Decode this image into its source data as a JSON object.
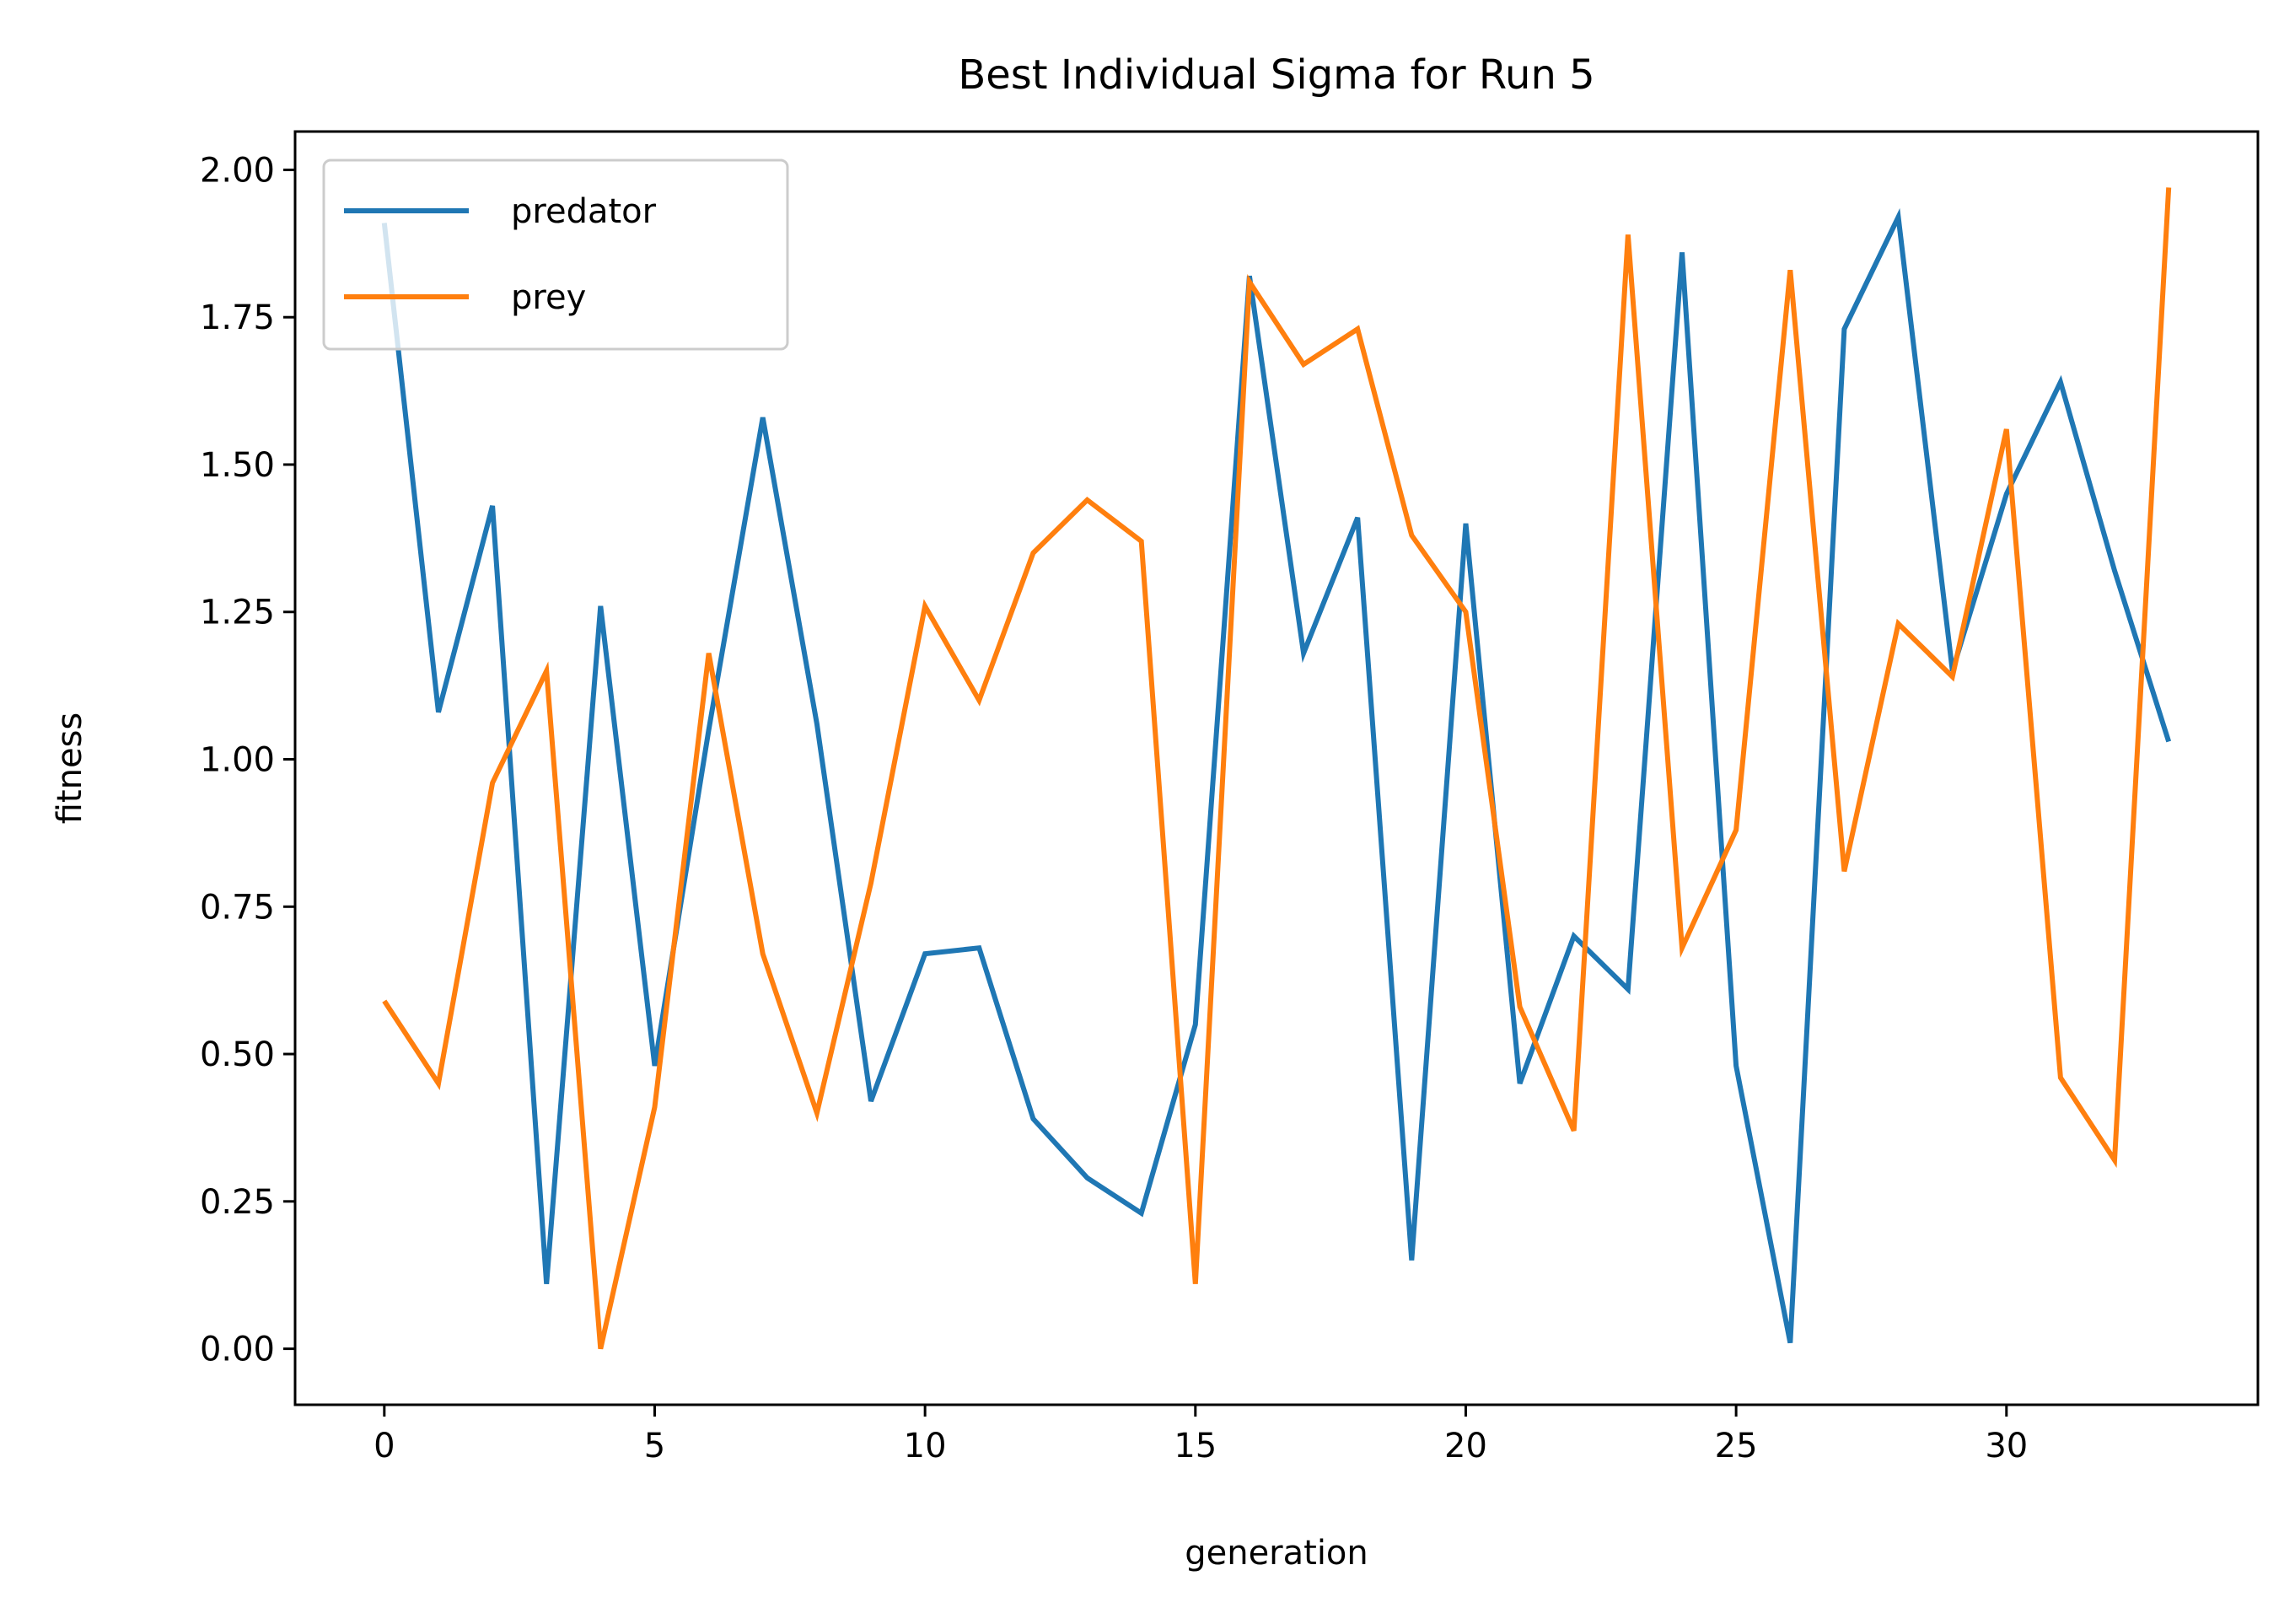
{
  "chart_data": {
    "type": "line",
    "title": "Best Individual Sigma for Run 5",
    "xlabel": "generation",
    "ylabel": "fitness",
    "xlim": [
      -1.65,
      34.65
    ],
    "ylim": [
      -0.095,
      2.065
    ],
    "xticks": [
      0,
      5,
      10,
      15,
      20,
      25,
      30
    ],
    "xtick_labels": [
      "0",
      "5",
      "10",
      "15",
      "20",
      "25",
      "30"
    ],
    "yticks": [
      0,
      0.25,
      0.5,
      0.75,
      1.0,
      1.25,
      1.5,
      1.75,
      2.0
    ],
    "ytick_labels": [
      "0.00",
      "0.25",
      "0.50",
      "0.75",
      "1.00",
      "1.25",
      "1.50",
      "1.75",
      "2.00"
    ],
    "grid": false,
    "legend_position": "top-left",
    "x": [
      0,
      1,
      2,
      3,
      4,
      5,
      6,
      7,
      8,
      9,
      10,
      11,
      12,
      13,
      14,
      15,
      16,
      17,
      18,
      19,
      20,
      21,
      22,
      23,
      24,
      25,
      26,
      27,
      28,
      29,
      30,
      31,
      32,
      33
    ],
    "series": [
      {
        "name": "predator",
        "color": "#1f77b4",
        "values": [
          1.91,
          1.08,
          1.43,
          0.11,
          1.26,
          0.48,
          1.05,
          1.58,
          1.06,
          0.42,
          0.67,
          0.68,
          0.39,
          0.29,
          0.23,
          0.55,
          1.82,
          1.18,
          1.41,
          0.15,
          1.4,
          0.45,
          0.7,
          0.61,
          1.86,
          0.48,
          0.01,
          1.73,
          1.92,
          1.15,
          1.45,
          1.64,
          1.32,
          1.03
        ]
      },
      {
        "name": "prey",
        "color": "#ff7f0e",
        "values": [
          0.59,
          0.45,
          0.96,
          1.15,
          0.0,
          0.41,
          1.18,
          0.67,
          0.4,
          0.79,
          1.26,
          1.1,
          1.35,
          1.44,
          1.37,
          0.11,
          1.81,
          1.67,
          1.73,
          1.38,
          1.25,
          0.58,
          0.37,
          1.89,
          0.68,
          0.88,
          1.83,
          0.81,
          1.23,
          1.14,
          1.56,
          0.46,
          0.32,
          1.97
        ]
      }
    ]
  }
}
